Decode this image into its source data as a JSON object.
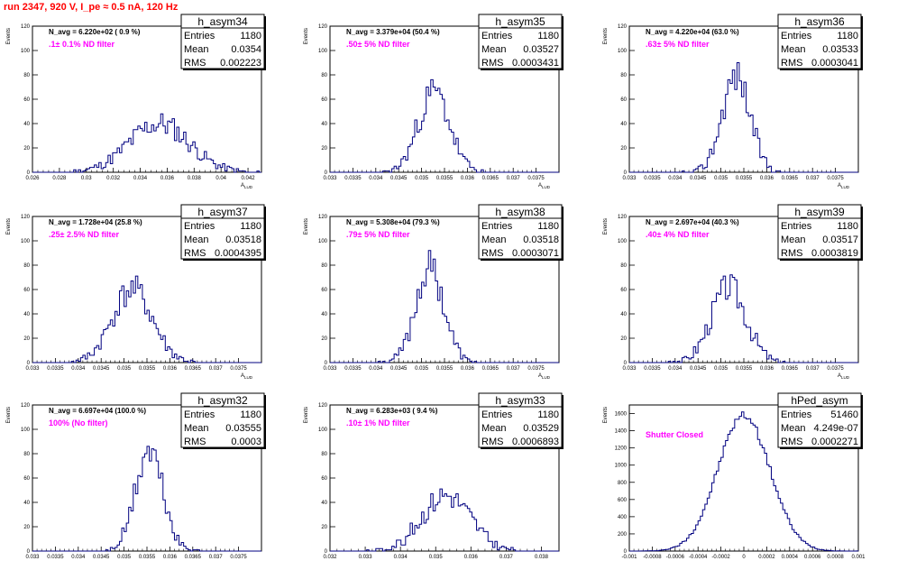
{
  "header": {
    "run_title": "run 2347,   920 V, I_pe ≈ 0.5 nA, 120 Hz"
  },
  "colors": {
    "histogram": "#000080",
    "annotation": "#ff00ff",
    "title": "#ff0000"
  },
  "chart_data": [
    {
      "type": "bar",
      "name": "h_asym34",
      "navg": "N_avg = 6.220e+02 ( 0.9 %)",
      "filter": ".1± 0.1% ND filter",
      "stats": {
        "entries_label": "Entries",
        "entries": "1180",
        "mean_label": "Mean",
        "mean": "0.0354",
        "rms_label": "RMS",
        "rms": "0.002223"
      },
      "ylabel": "Events",
      "xlabel": "A",
      "xlim": [
        0.026,
        0.043
      ],
      "ylim": [
        0,
        120
      ],
      "xticks": [
        "0.026",
        "0.028",
        "0.03",
        "0.032",
        "0.034",
        "0.036",
        "0.038",
        "0.04",
        "0.042"
      ],
      "yticks": [
        "0",
        "20",
        "40",
        "60",
        "80",
        "100",
        "120"
      ],
      "mean_v": 0.0354,
      "rms_v": 0.002223,
      "peak": 40,
      "seed": 11
    },
    {
      "type": "bar",
      "name": "h_asym35",
      "navg": "N_avg = 3.379e+04 (50.4 %)",
      "filter": ".50± 5% ND filter",
      "stats": {
        "entries_label": "Entries",
        "entries": "1180",
        "mean_label": "Mean",
        "mean": "0.03527",
        "rms_label": "RMS",
        "rms": "0.0003431"
      },
      "ylabel": "Events",
      "xlabel": "A",
      "xlim": [
        0.033,
        0.038
      ],
      "ylim": [
        0,
        120
      ],
      "xticks": [
        "0.033",
        "0.0335",
        "0.034",
        "0.0345",
        "0.035",
        "0.0355",
        "0.036",
        "0.0365",
        "0.037",
        "0.0375"
      ],
      "yticks": [
        "0",
        "20",
        "40",
        "60",
        "80",
        "100",
        "120"
      ],
      "mean_v": 0.03527,
      "rms_v": 0.0003431,
      "peak": 66,
      "seed": 23
    },
    {
      "type": "bar",
      "name": "h_asym36",
      "navg": "N_avg = 4.220e+04 (63.0 %)",
      "filter": ".63± 5% ND filter",
      "stats": {
        "entries_label": "Entries",
        "entries": "1180",
        "mean_label": "Mean",
        "mean": "0.03533",
        "rms_label": "RMS",
        "rms": "0.0003041"
      },
      "ylabel": "Events",
      "xlabel": "A",
      "xlim": [
        0.033,
        0.038
      ],
      "ylim": [
        0,
        120
      ],
      "xticks": [
        "0.033",
        "0.0335",
        "0.034",
        "0.0345",
        "0.035",
        "0.0355",
        "0.036",
        "0.0365",
        "0.037",
        "0.0375"
      ],
      "yticks": [
        "0",
        "20",
        "40",
        "60",
        "80",
        "100",
        "120"
      ],
      "mean_v": 0.03533,
      "rms_v": 0.0003041,
      "peak": 80,
      "seed": 37
    },
    {
      "type": "bar",
      "name": "h_asym37",
      "navg": "N_avg = 1.728e+04 (25.8 %)",
      "filter": ".25± 2.5% ND filter",
      "stats": {
        "entries_label": "Entries",
        "entries": "1180",
        "mean_label": "Mean",
        "mean": "0.03518",
        "rms_label": "RMS",
        "rms": "0.0004395"
      },
      "ylabel": "Events",
      "xlabel": "A",
      "xlim": [
        0.033,
        0.038
      ],
      "ylim": [
        0,
        120
      ],
      "xticks": [
        "0.033",
        "0.0335",
        "0.034",
        "0.0345",
        "0.035",
        "0.0355",
        "0.036",
        "0.0365",
        "0.037",
        "0.0375"
      ],
      "yticks": [
        "0",
        "20",
        "40",
        "60",
        "80",
        "100",
        "120"
      ],
      "mean_v": 0.03518,
      "rms_v": 0.0004395,
      "peak": 60,
      "seed": 41
    },
    {
      "type": "bar",
      "name": "h_asym38",
      "navg": "N_avg = 5.308e+04 (79.3 %)",
      "filter": ".79± 5% ND filter",
      "stats": {
        "entries_label": "Entries",
        "entries": "1180",
        "mean_label": "Mean",
        "mean": "0.03518",
        "rms_label": "RMS",
        "rms": "0.0003071"
      },
      "ylabel": "Events",
      "xlabel": "A",
      "xlim": [
        0.033,
        0.038
      ],
      "ylim": [
        0,
        120
      ],
      "xticks": [
        "0.033",
        "0.0335",
        "0.034",
        "0.0345",
        "0.035",
        "0.0355",
        "0.036",
        "0.0365",
        "0.037",
        "0.0375"
      ],
      "yticks": [
        "0",
        "20",
        "40",
        "60",
        "80",
        "100",
        "120"
      ],
      "mean_v": 0.03518,
      "rms_v": 0.0003071,
      "peak": 78,
      "seed": 53
    },
    {
      "type": "bar",
      "name": "h_asym39",
      "navg": "N_avg = 2.697e+04 (40.3 %)",
      "filter": ".40± 4% ND filter",
      "stats": {
        "entries_label": "Entries",
        "entries": "1180",
        "mean_label": "Mean",
        "mean": "0.03517",
        "rms_label": "RMS",
        "rms": "0.0003819"
      },
      "ylabel": "Events",
      "xlabel": "A",
      "xlim": [
        0.033,
        0.038
      ],
      "ylim": [
        0,
        120
      ],
      "xticks": [
        "0.033",
        "0.0335",
        "0.034",
        "0.0345",
        "0.035",
        "0.0355",
        "0.036",
        "0.0365",
        "0.037",
        "0.0375"
      ],
      "yticks": [
        "0",
        "20",
        "40",
        "60",
        "80",
        "100",
        "120"
      ],
      "mean_v": 0.03517,
      "rms_v": 0.0003819,
      "peak": 62,
      "seed": 67
    },
    {
      "type": "bar",
      "name": "h_asym32",
      "navg": "N_avg = 6.697e+04 (100.0 %)",
      "filter": "100% (No filter)",
      "stats": {
        "entries_label": "Entries",
        "entries": "1180",
        "mean_label": "Mean",
        "mean": "0.03555",
        "rms_label": "RMS",
        "rms": "0.0003"
      },
      "ylabel": "Events",
      "xlabel": "A",
      "xlim": [
        0.033,
        0.038
      ],
      "ylim": [
        0,
        120
      ],
      "xticks": [
        "0.033",
        "0.0335",
        "0.034",
        "0.0345",
        "0.035",
        "0.0355",
        "0.036",
        "0.0365",
        "0.037",
        "0.0375"
      ],
      "yticks": [
        "0",
        "20",
        "40",
        "60",
        "80",
        "100",
        "120"
      ],
      "mean_v": 0.03555,
      "rms_v": 0.0003,
      "peak": 82,
      "seed": 71
    },
    {
      "type": "bar",
      "name": "h_asym33",
      "navg": "N_avg = 6.283e+03 ( 9.4 %)",
      "filter": ".10± 1% ND filter",
      "stats": {
        "entries_label": "Entries",
        "entries": "1180",
        "mean_label": "Mean",
        "mean": "0.03529",
        "rms_label": "RMS",
        "rms": "0.0006893"
      },
      "ylabel": "Events",
      "xlabel": "A",
      "xlim": [
        0.032,
        0.0385
      ],
      "ylim": [
        0,
        120
      ],
      "xticks": [
        "0.032",
        "0.033",
        "0.034",
        "0.035",
        "0.036",
        "0.037",
        "0.038"
      ],
      "yticks": [
        "0",
        "20",
        "40",
        "60",
        "80",
        "100",
        "120"
      ],
      "mean_v": 0.03529,
      "rms_v": 0.0006893,
      "peak": 46,
      "seed": 83
    },
    {
      "type": "bar",
      "name": "hPed_asym",
      "navg": "",
      "filter": "Shutter Closed",
      "stats": {
        "entries_label": "Entries",
        "entries": "51460",
        "mean_label": "Mean",
        "mean": "4.249e-07",
        "rms_label": "RMS",
        "rms": "0.0002271"
      },
      "ylabel": "Events",
      "xlabel": "",
      "xlim": [
        -0.001,
        0.001
      ],
      "ylim": [
        0,
        1700
      ],
      "xticks": [
        "-0.001",
        "-0.0008",
        "-0.0006",
        "-0.0004",
        "-0.0002",
        "0",
        "0.0002",
        "0.0004",
        "0.0006",
        "0.0008",
        "0.001"
      ],
      "yticks": [
        "0",
        "200",
        "400",
        "600",
        "800",
        "1000",
        "1200",
        "1400",
        "1600"
      ],
      "mean_v": 0.0,
      "rms_v": 0.0002271,
      "peak": 1580,
      "seed": 97
    }
  ]
}
